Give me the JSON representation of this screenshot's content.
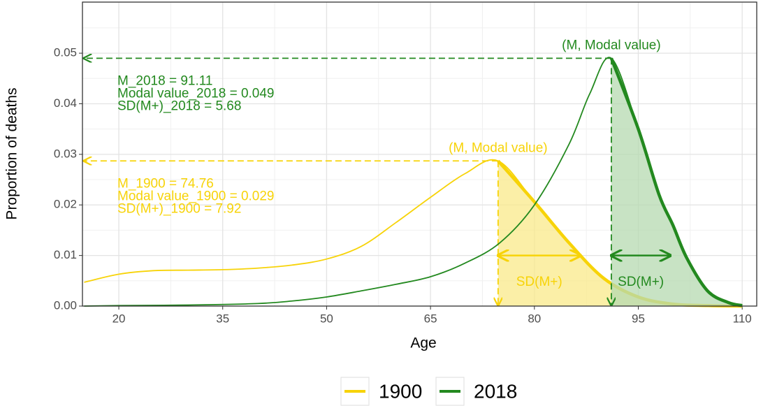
{
  "chart_data": {
    "type": "line",
    "xlabel": "Age",
    "ylabel": "Proportion of deaths",
    "xlim": [
      14.75,
      112.1
    ],
    "ylim": [
      0,
      0.0601
    ],
    "xticks": [
      20,
      35,
      50,
      65,
      80,
      95,
      110
    ],
    "yticks": [
      {
        "value": 0,
        "label": "0.00"
      },
      0.01,
      0.02,
      0.03,
      0.04,
      0.05
    ],
    "grid": true,
    "legend": "bottom",
    "series": [
      {
        "name": "1900",
        "color": "#f7d308",
        "fill": "#f9e98a",
        "x": [
          15,
          20,
          25,
          30,
          35,
          40,
          45,
          50,
          55,
          60,
          65,
          70,
          74.76,
          80,
          85,
          90,
          95,
          100,
          105,
          110
        ],
        "values": [
          0.0047,
          0.0063,
          0.007,
          0.0071,
          0.0072,
          0.0075,
          0.0081,
          0.0093,
          0.0118,
          0.0165,
          0.0215,
          0.0262,
          0.0287,
          0.0206,
          0.0125,
          0.0055,
          0.0018,
          0.0004,
          0.0001,
          0
        ],
        "mode_label": "(M, Modal value)",
        "stats": [
          "M_1900 =  74.76",
          "Modal value_1900 =  0.029",
          "SD(M+)_1900 =  7.92"
        ],
        "sd": 7.92,
        "sd_label": "SD(M+)"
      },
      {
        "name": "2018",
        "color": "#23891f",
        "fill": "#b5d9b0",
        "x": [
          15,
          20,
          30,
          40,
          45,
          50,
          55,
          60,
          65,
          70,
          75,
          80,
          85,
          88,
          91.11,
          95,
          98,
          100,
          102,
          105,
          108,
          110
        ],
        "values": [
          0,
          0.0001,
          0.0002,
          0.0005,
          0.001,
          0.0018,
          0.003,
          0.0043,
          0.0058,
          0.0085,
          0.0125,
          0.02,
          0.032,
          0.042,
          0.049,
          0.035,
          0.022,
          0.016,
          0.0095,
          0.003,
          0.0007,
          0.0001
        ],
        "mode_label": "(M, Modal value)",
        "stats": [
          "M_2018  =  91.11",
          "Modal value_2018 =  0.049",
          "SD(M+)_2018 =  5.68"
        ],
        "sd": 5.68,
        "sd_label": "SD(M+)"
      }
    ]
  }
}
